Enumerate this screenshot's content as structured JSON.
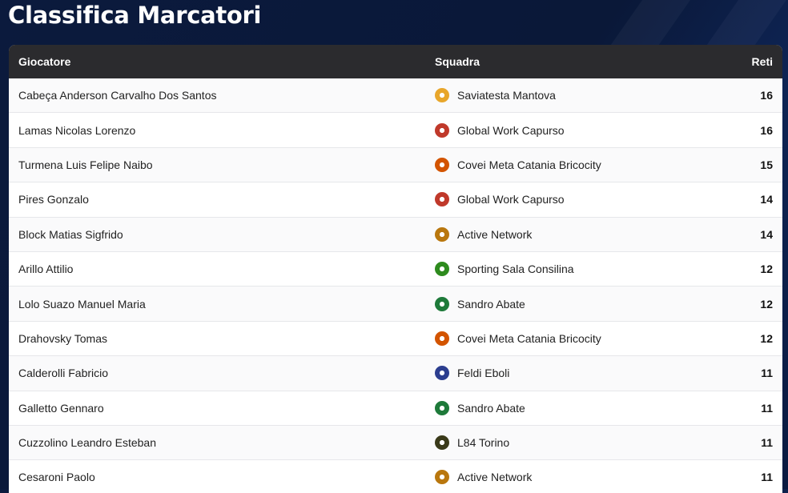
{
  "page_title": "Classifica Marcatori",
  "headers": {
    "player": "Giocatore",
    "team": "Squadra",
    "goals": "Reti"
  },
  "rows": [
    {
      "player": "Cabeça Anderson Carvalho Dos Santos",
      "team": "Saviatesta Mantova",
      "goals": "16",
      "logo_color": "#e8a62b",
      "logo_icon": "saviatesta-mantova-logo-icon"
    },
    {
      "player": "Lamas Nicolas Lorenzo",
      "team": "Global Work Capurso",
      "goals": "16",
      "logo_color": "#c0392b",
      "logo_icon": "global-work-capurso-logo-icon"
    },
    {
      "player": "Turmena Luis Felipe Naibo",
      "team": "Covei Meta Catania Bricocity",
      "goals": "15",
      "logo_color": "#d35400",
      "logo_icon": "covei-meta-catania-logo-icon"
    },
    {
      "player": "Pires Gonzalo",
      "team": "Global Work Capurso",
      "goals": "14",
      "logo_color": "#c0392b",
      "logo_icon": "global-work-capurso-logo-icon"
    },
    {
      "player": "Block Matias Sigfrido",
      "team": "Active Network",
      "goals": "14",
      "logo_color": "#b9770e",
      "logo_icon": "active-network-logo-icon"
    },
    {
      "player": "Arillo Attilio",
      "team": "Sporting Sala Consilina",
      "goals": "12",
      "logo_color": "#2e8b1e",
      "logo_icon": "sporting-sala-consilina-logo-icon"
    },
    {
      "player": "Lolo Suazo Manuel Maria",
      "team": "Sandro Abate",
      "goals": "12",
      "logo_color": "#1e7a3a",
      "logo_icon": "sandro-abate-logo-icon"
    },
    {
      "player": "Drahovsky Tomas",
      "team": "Covei Meta Catania Bricocity",
      "goals": "12",
      "logo_color": "#d35400",
      "logo_icon": "covei-meta-catania-logo-icon"
    },
    {
      "player": "Calderolli Fabricio",
      "team": "Feldi Eboli",
      "goals": "11",
      "logo_color": "#2c3e8f",
      "logo_icon": "feldi-eboli-logo-icon"
    },
    {
      "player": "Galletto Gennaro",
      "team": "Sandro Abate",
      "goals": "11",
      "logo_color": "#1e7a3a",
      "logo_icon": "sandro-abate-logo-icon"
    },
    {
      "player": "Cuzzolino Leandro Esteban",
      "team": "L84 Torino",
      "goals": "11",
      "logo_color": "#3a3a1a",
      "logo_icon": "l84-torino-logo-icon"
    },
    {
      "player": "Cesaroni Paolo",
      "team": "Active Network",
      "goals": "11",
      "logo_color": "#b9770e",
      "logo_icon": "active-network-logo-icon"
    }
  ]
}
